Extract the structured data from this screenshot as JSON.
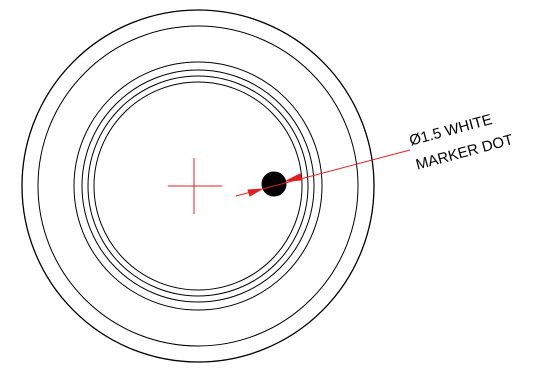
{
  "callout": {
    "line1": "Ø1.5 WHITE",
    "line2": "MARKER DOT"
  },
  "colors": {
    "outline": "#000000",
    "centerline": "#e02020",
    "leader": "#e02020",
    "marker_fill": "#000000",
    "background": "#ffffff"
  }
}
